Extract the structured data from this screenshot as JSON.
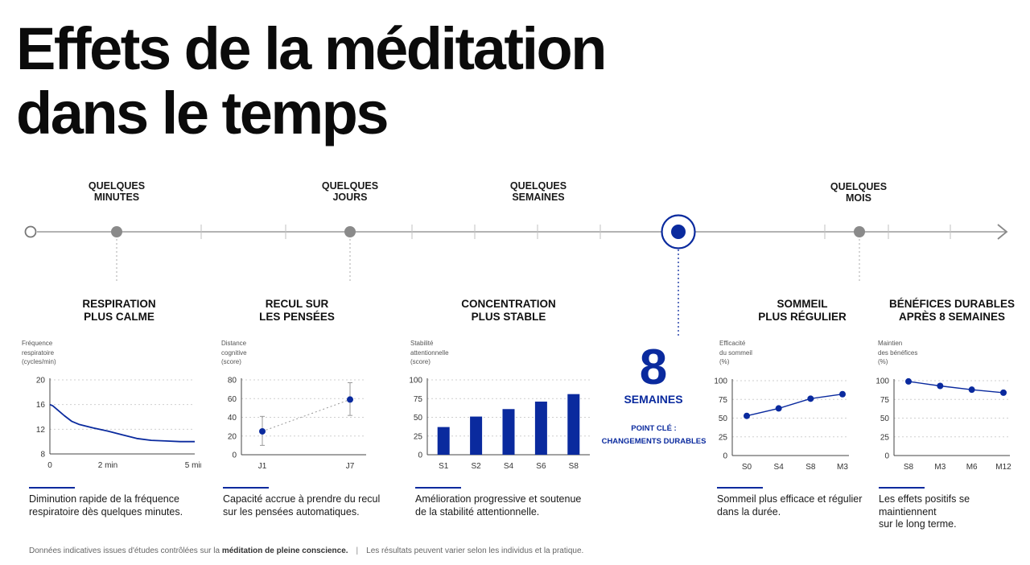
{
  "title": {
    "line1": "Effets de la méditation",
    "line2": "dans le temps"
  },
  "timeline": {
    "labels": [
      {
        "text": "QUELQUES\nMINUTES"
      },
      {
        "text": "QUELQUES\nJOURS"
      },
      {
        "text": "QUELQUES\nSEMAINES"
      },
      {
        "text": "QUELQUES\nMOIS"
      }
    ]
  },
  "sections": [
    {
      "title": "RESPIRATION\nPLUS CALME",
      "ylabel": "Fréquence\nrespiratoire\n(cycles/min)",
      "description": "Diminution rapide de la fréquence\nrespiratoire dès quelques minutes."
    },
    {
      "title": "RECUL SUR\nLES PENSÉES",
      "ylabel": "Distance\ncognitive\n(score)",
      "description": "Capacité accrue à prendre du recul\nsur les pensées automatiques."
    },
    {
      "title": "CONCENTRATION\nPLUS STABLE",
      "ylabel": "Stabilité\nattentionnelle\n(score)",
      "description": "Amélioration progressive et soutenue\nde la stabilité attentionnelle."
    },
    {
      "title": "SOMMEIL\nPLUS RÉGULIER",
      "ylabel": "Efficacité\ndu sommeil\n(%)",
      "description": "Sommeil plus efficace et régulier\ndans la durée."
    },
    {
      "title": "BÉNÉFICES DURABLES\nAPRÈS 8 SEMAINES",
      "ylabel": "Maintien\ndes bénéfices\n(%)",
      "description": "Les effets positifs se maintiennent\nsur le long terme."
    }
  ],
  "highlight": {
    "number": "8",
    "unit": "SEMAINES",
    "key_label": "POINT CLÉ :",
    "key_text": "CHANGEMENTS DURABLES"
  },
  "footer": {
    "text_before": "Données indicatives issues d'études contrôlées sur la ",
    "text_bold": "méditation de pleine conscience.",
    "separator": "|",
    "text_after": "Les résultats peuvent varier selon les individus et la pratique."
  },
  "colors": {
    "accent": "#0a2a9e",
    "gray": "#888888",
    "grid": "#cfcfcf"
  },
  "chart_data": [
    {
      "type": "line",
      "x": [
        0,
        0.1,
        0.25,
        0.5,
        0.75,
        1,
        1.5,
        2,
        2.5,
        3,
        3.5,
        4,
        4.5,
        5
      ],
      "y": [
        16,
        15.8,
        15.2,
        14.2,
        13.3,
        12.8,
        12.2,
        11.7,
        11.1,
        10.5,
        10.2,
        10.1,
        10,
        10
      ],
      "xticks": [
        {
          "v": 0,
          "label": "0"
        },
        {
          "v": 2,
          "label": "2 min"
        },
        {
          "v": 5,
          "label": "5 min"
        }
      ],
      "yticks": [
        8,
        12,
        16,
        20
      ],
      "ylim": [
        8,
        20
      ],
      "xlim": [
        0,
        5
      ],
      "ylabel": "Fréquence\nrespiratoire\n(cycles/min)"
    },
    {
      "type": "scatter",
      "categories": [
        "J1",
        "J7"
      ],
      "values": [
        25,
        59
      ],
      "error_low": [
        10,
        42
      ],
      "error_high": [
        41,
        77
      ],
      "yticks": [
        0,
        20,
        40,
        60,
        80
      ],
      "ylim": [
        0,
        80
      ],
      "ylabel": "Distance\ncognitive\n(score)"
    },
    {
      "type": "bar",
      "categories": [
        "S1",
        "S2",
        "S4",
        "S6",
        "S8"
      ],
      "values": [
        37,
        51,
        61,
        71,
        81
      ],
      "yticks": [
        0,
        25,
        50,
        75,
        100
      ],
      "ylim": [
        0,
        100
      ],
      "ylabel": "Stabilité\nattentionnelle\n(score)"
    },
    {
      "type": "line",
      "categories": [
        "S0",
        "S4",
        "S8",
        "M3"
      ],
      "values": [
        53,
        63,
        76,
        82
      ],
      "yticks": [
        0,
        25,
        50,
        75,
        100
      ],
      "ylim": [
        0,
        100
      ],
      "ylabel": "Efficacité\ndu sommeil\n(%)"
    },
    {
      "type": "line",
      "categories": [
        "S8",
        "M3",
        "M6",
        "M12"
      ],
      "values": [
        99,
        93,
        88,
        84
      ],
      "yticks": [
        0,
        25,
        50,
        75,
        100
      ],
      "ylim": [
        0,
        100
      ],
      "ylabel": "Maintien\ndes bénéfices\n(%)"
    }
  ]
}
